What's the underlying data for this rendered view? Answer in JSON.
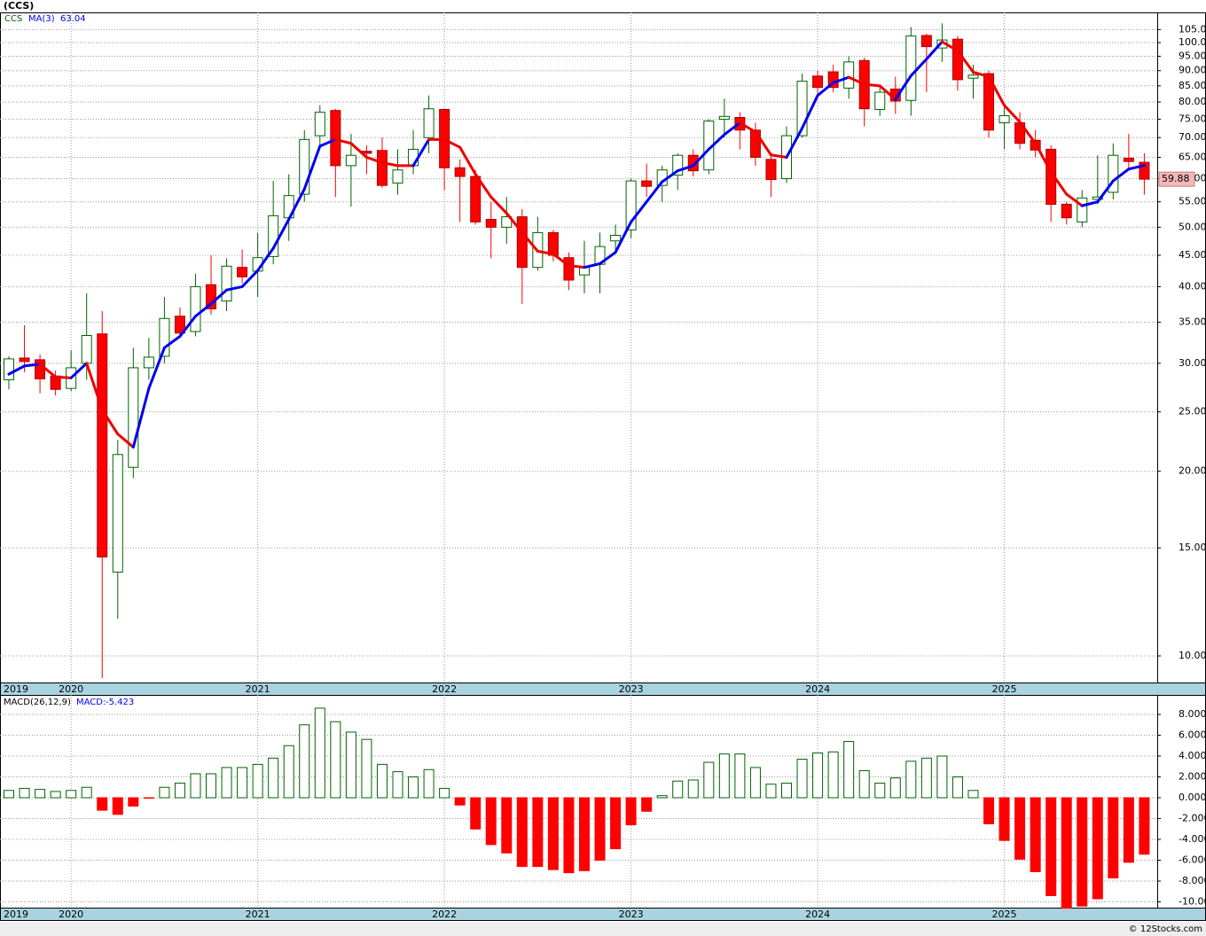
{
  "chart_data": [
    {
      "type": "candlestick",
      "title": "(CCS)",
      "name": "CCS",
      "log_scale": true,
      "grid": true,
      "up_color": "#006400",
      "down_color": "#ff0000",
      "band_color": "#a9d3e0",
      "categories": [
        "2019",
        null,
        null,
        null,
        "2020",
        null,
        null,
        null,
        null,
        null,
        null,
        null,
        null,
        null,
        null,
        null,
        "2021",
        null,
        null,
        null,
        null,
        null,
        null,
        null,
        null,
        null,
        null,
        null,
        "2022",
        null,
        null,
        null,
        null,
        null,
        null,
        null,
        null,
        null,
        null,
        null,
        "2023",
        null,
        null,
        null,
        null,
        null,
        null,
        null,
        null,
        null,
        null,
        null,
        "2024",
        null,
        null,
        null,
        null,
        null,
        null,
        null,
        null,
        null,
        null,
        null,
        "2025",
        null,
        null,
        null,
        null,
        null,
        null,
        null,
        null,
        null
      ],
      "open": [
        28.2,
        30.6,
        30.4,
        28.6,
        27.3,
        30,
        33.5,
        13.7,
        20.3,
        29.5,
        30.8,
        35.8,
        33.8,
        40.3,
        37.9,
        43,
        42.4,
        44.8,
        51.8,
        56.6,
        70.5,
        77.5,
        63,
        66.5,
        66.7,
        59,
        63,
        70,
        77.8,
        62.5,
        60.5,
        51.5,
        50,
        52,
        43,
        49,
        44.6,
        41.8,
        43.5,
        47.5,
        49.5,
        59.5,
        58.5,
        60.8,
        65.5,
        62,
        75,
        75.5,
        72,
        64.5,
        60,
        70.5,
        88.2,
        89.6,
        84.3,
        93.5,
        77.8,
        84,
        80.5,
        102.7,
        98,
        101.3,
        87.5,
        89,
        74,
        74,
        69.3,
        67,
        54.5,
        51,
        55.5,
        57,
        64.8,
        63.8
      ],
      "high": [
        30.8,
        34.6,
        31,
        29.2,
        31.5,
        39,
        36.5,
        22.5,
        31.8,
        33,
        38.5,
        37,
        42,
        45,
        44.5,
        46,
        49,
        59.5,
        61,
        72,
        79,
        78,
        71,
        68,
        70,
        67,
        72,
        82,
        78,
        64.5,
        62,
        55,
        56,
        53.5,
        52,
        49.5,
        45.5,
        47.5,
        49,
        50.5,
        60,
        63.5,
        63,
        66,
        67,
        75,
        81,
        77,
        74,
        66,
        73,
        89,
        90,
        92,
        95,
        94.5,
        85,
        88,
        106,
        103.5,
        107.5,
        102.5,
        92,
        90,
        79,
        77,
        72,
        68,
        55,
        57.5,
        65.5,
        68.5,
        71,
        66
      ],
      "low": [
        27.2,
        29,
        26.8,
        26.6,
        27,
        28.2,
        9.2,
        11.5,
        19.5,
        28.2,
        30,
        33,
        33.2,
        36,
        36.5,
        40.5,
        38.5,
        43.5,
        47.5,
        55,
        68,
        56,
        54,
        61,
        58,
        56.5,
        61,
        66,
        57.5,
        51,
        50.5,
        44.5,
        47,
        37.5,
        42.5,
        44,
        39.5,
        39,
        39,
        45.5,
        48,
        56,
        55,
        57.5,
        60.5,
        61,
        70,
        67,
        63,
        56,
        59,
        70,
        82,
        83,
        81,
        73,
        76,
        76.5,
        76,
        83,
        93,
        83.5,
        81,
        70,
        67,
        67,
        65,
        51,
        50.5,
        50,
        54.5,
        55.5,
        62,
        56.5
      ],
      "close": [
        30.5,
        30.2,
        28.3,
        27.2,
        29.5,
        33.3,
        14.5,
        21.3,
        29.5,
        30.7,
        35.5,
        33.6,
        40,
        36.8,
        43.2,
        41.5,
        44.6,
        52.2,
        56.3,
        69.5,
        77,
        63,
        65.5,
        66,
        58.5,
        62,
        67,
        78,
        62.5,
        60.5,
        51,
        50,
        52,
        43,
        49,
        45,
        41,
        43,
        46.5,
        48.5,
        59.5,
        58.3,
        62,
        65.5,
        61.8,
        74.5,
        75.8,
        72,
        65,
        59.8,
        70.5,
        86.5,
        84.5,
        84.5,
        93,
        78,
        83,
        80.3,
        102.5,
        98.5,
        101,
        87,
        88.5,
        72,
        76,
        68.5,
        66.8,
        54.5,
        51.8,
        55.8,
        56,
        65.5,
        64,
        59.88
      ],
      "ma": {
        "name": "MA(3)",
        "rising_color": "#0000ee",
        "falling_color": "#ee0000",
        "values": [
          28.8,
          29.7,
          29.9,
          28.5,
          28.4,
          30,
          25.2,
          23,
          21.9,
          27.3,
          31.8,
          33.2,
          35.8,
          37.5,
          39.5,
          40,
          42.5,
          46.2,
          51.5,
          57.7,
          67.8,
          69.5,
          68.5,
          65,
          63.7,
          63,
          63,
          69.5,
          69.5,
          67.5,
          61,
          56,
          52.7,
          49,
          45.7,
          45.2,
          43.3,
          43,
          43.6,
          45.5,
          51,
          55,
          59.3,
          61.8,
          63,
          67,
          70.8,
          74,
          71.5,
          65.6,
          65,
          72.5,
          82,
          86,
          87.8,
          85.5,
          85,
          80.8,
          88.3,
          94,
          100.3,
          97,
          89.5,
          88,
          79,
          74.2,
          68.5,
          61.5,
          56.6,
          54.2,
          55,
          59.5,
          62.2,
          63.04
        ]
      },
      "ylim": [
        9.05,
        112
      ],
      "yticks": [
        {
          "value": 10,
          "label": "10.00"
        },
        {
          "value": 15,
          "label": "15.00"
        },
        {
          "value": 20,
          "label": "20.00"
        },
        {
          "value": 25,
          "label": "25.00"
        },
        {
          "value": 30,
          "label": "30.00"
        },
        {
          "value": 35,
          "label": "35.00"
        },
        {
          "value": 40,
          "label": "40.00"
        },
        {
          "value": 45,
          "label": "45.00"
        },
        {
          "value": 50,
          "label": "50.00"
        },
        {
          "value": 55,
          "label": "55.00"
        },
        {
          "value": 60,
          "label": "60.00"
        },
        {
          "value": 65,
          "label": "65.00"
        },
        {
          "value": 70,
          "label": "70.00"
        },
        {
          "value": 75,
          "label": "75.00"
        },
        {
          "value": 80,
          "label": "80.00"
        },
        {
          "value": 85,
          "label": "85.00"
        },
        {
          "value": 90,
          "label": "90.00"
        },
        {
          "value": 95,
          "label": "95.00"
        },
        {
          "value": 100,
          "label": "100.00"
        },
        {
          "value": 105,
          "label": "105.00"
        }
      ]
    },
    {
      "type": "bar",
      "title": "MACD(26,12,9)",
      "legend_label": "MACD:",
      "grid": true,
      "up_color": "#006400",
      "down_color": "#ff0000",
      "values": [
        0.7,
        0.9,
        0.8,
        0.6,
        0.7,
        1.0,
        -1.2,
        -1.6,
        -0.8,
        -0.05,
        1.0,
        1.4,
        2.3,
        2.3,
        2.9,
        2.9,
        3.2,
        3.8,
        5.0,
        7.0,
        8.6,
        7.3,
        6.3,
        5.6,
        3.2,
        2.5,
        2.0,
        2.7,
        0.9,
        -0.7,
        -3.0,
        -4.5,
        -5.3,
        -6.6,
        -6.6,
        -6.9,
        -7.2,
        -7.0,
        -6.0,
        -4.9,
        -2.6,
        -1.3,
        0.2,
        1.6,
        1.7,
        3.4,
        4.2,
        4.2,
        2.9,
        1.3,
        1.4,
        3.7,
        4.3,
        4.4,
        5.4,
        2.6,
        1.4,
        1.9,
        3.5,
        3.8,
        4.0,
        2.0,
        0.7,
        -2.5,
        -4.1,
        -5.9,
        -7.1,
        -9.4,
        -10.6,
        -10.4,
        -9.7,
        -7.7,
        -6.2,
        -5.423
      ],
      "ylim": [
        -10.55,
        9.87
      ],
      "yticks": [
        {
          "value": -10,
          "label": "-10.000"
        },
        {
          "value": -8,
          "label": "-8.000"
        },
        {
          "value": -6,
          "label": "-6.000"
        },
        {
          "value": -4,
          "label": "-4.000"
        },
        {
          "value": -2,
          "label": "-2.000"
        },
        {
          "value": 0,
          "label": "0.000"
        },
        {
          "value": 2,
          "label": "2.000"
        },
        {
          "value": 4,
          "label": "4.000"
        },
        {
          "value": 6,
          "label": "6.000"
        },
        {
          "value": 8,
          "label": "8.000"
        }
      ]
    }
  ],
  "footer": "© 12Stocks.com"
}
